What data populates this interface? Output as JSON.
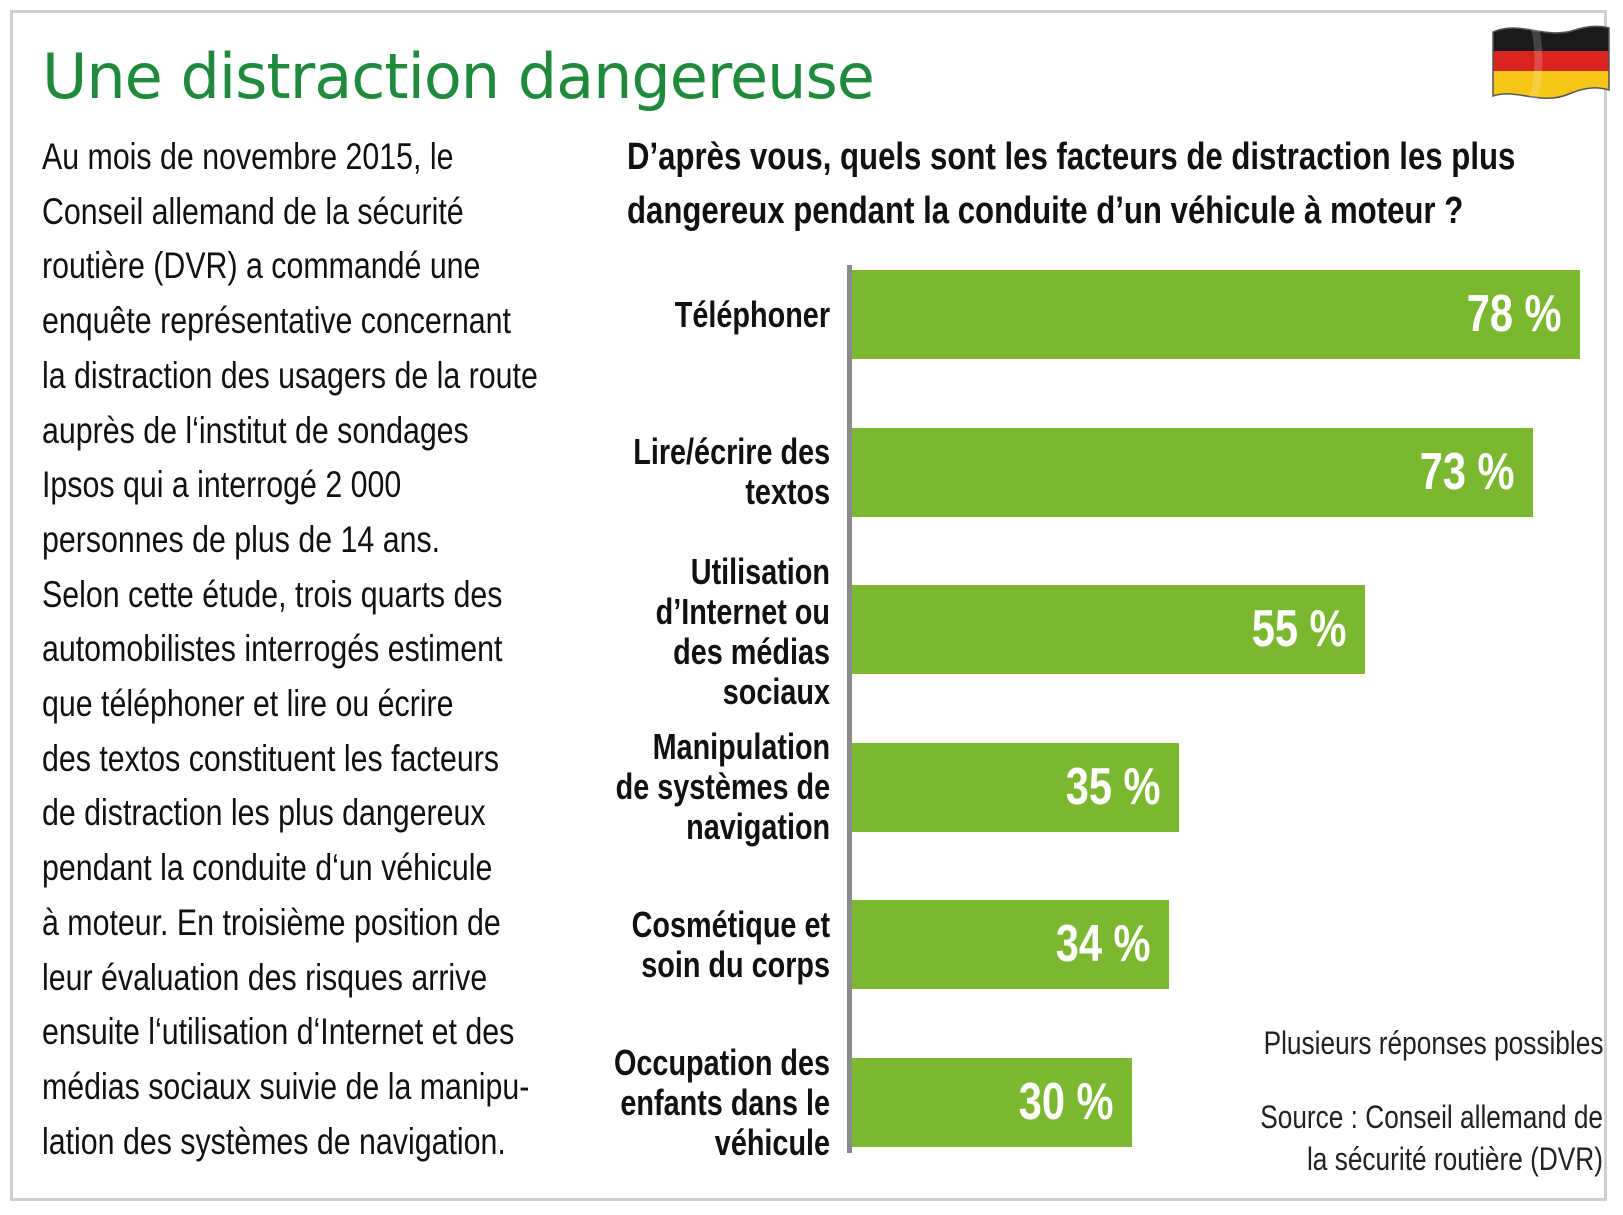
{
  "title": "Une distraction dangereuse",
  "flag_icon": "germany-flag-icon",
  "body_lines": [
    "Au mois de novembre 2015, le",
    "Conseil allemand de la sécurité",
    "routière (DVR) a commandé une",
    "enquête représentative concernant",
    "la distraction des usagers de la route",
    "auprès de l‘institut de sondages",
    "Ipsos qui a interrogé 2 000",
    "personnes de plus de 14 ans.",
    "Selon cette étude, trois quarts des",
    "automobilistes interrogés estiment",
    "que téléphoner et lire ou écrire",
    "des textos constituent les facteurs",
    "de distraction les plus dangereux",
    "pendant la conduite d‘un véhicule",
    "à moteur. En troisième position de",
    "leur évaluation des risques arrive",
    "ensuite l‘utilisation d‘Internet et des",
    "médias sociaux suivie de la manipu-",
    "lation des systèmes de navigation."
  ],
  "colors": {
    "title": "#1f8a3c",
    "bar": "#7cb82f",
    "axis": "#8a8a8a",
    "frame": "#cfcfcf"
  },
  "chart_data": {
    "type": "bar",
    "orientation": "horizontal",
    "title_lines": [
      "D’après vous, quels sont les facteurs de distraction les plus",
      "dangereux pendant la conduite d’un véhicule à moteur ?"
    ],
    "categories": [
      [
        "Téléphoner"
      ],
      [
        "Lire/écrire des",
        "textos"
      ],
      [
        "Utilisation",
        "d’Internet ou",
        "des médias",
        "sociaux"
      ],
      [
        "Manipulation",
        "de systèmes de",
        "navigation"
      ],
      [
        "Cosmétique et",
        "soin du corps"
      ],
      [
        "Occupation des",
        "enfants dans le",
        "véhicule"
      ]
    ],
    "values": [
      78,
      73,
      55,
      35,
      34,
      30
    ],
    "value_labels": [
      "78 %",
      "73 %",
      "55 %",
      "35 %",
      "34 %",
      "30 %"
    ],
    "unit": "%",
    "xlim": [
      0,
      78
    ],
    "grid": false,
    "notes": [
      "Plusieurs réponses possibles",
      "Source : Conseil allemand de",
      "la sécurité routière (DVR)"
    ]
  }
}
